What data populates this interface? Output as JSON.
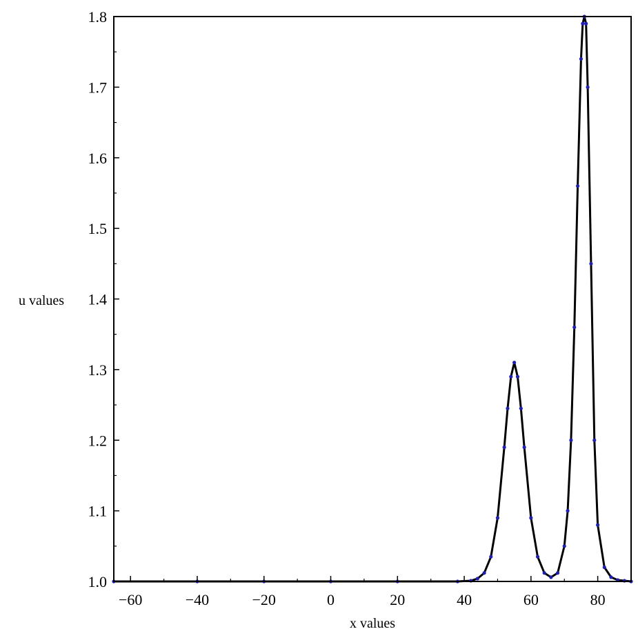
{
  "chart_data": {
    "type": "line",
    "title": "",
    "xlabel": "x values",
    "ylabel": "u values",
    "xlim": [
      -65,
      90
    ],
    "ylim": [
      1.0,
      1.8
    ],
    "x_ticks": [
      -60,
      -40,
      -20,
      0,
      20,
      40,
      60,
      80
    ],
    "x_tick_labels": [
      "−60",
      "−40",
      "−20",
      "0",
      "20",
      "40",
      "60",
      "80"
    ],
    "y_ticks": [
      1.0,
      1.1,
      1.2,
      1.3,
      1.4,
      1.5,
      1.6,
      1.7,
      1.8
    ],
    "y_tick_labels": [
      "1.0",
      "1.1",
      "1.2",
      "1.3",
      "1.4",
      "1.5",
      "1.6",
      "1.7",
      "1.8"
    ],
    "grid": false,
    "legend": "none",
    "series": [
      {
        "style": "line",
        "color": "#000000",
        "x": [
          -65,
          -40,
          -20,
          0,
          20,
          38,
          42,
          44,
          46,
          48,
          50,
          52,
          53,
          54,
          55,
          56,
          57,
          58,
          60,
          62,
          64,
          66,
          68,
          70,
          71,
          72,
          73,
          74,
          75,
          75.5,
          76,
          76.5,
          77,
          78,
          79,
          80,
          82,
          84,
          86,
          88,
          90
        ],
        "y": [
          1.0,
          1.0,
          1.0,
          1.0,
          1.0,
          1.0,
          1.001,
          1.004,
          1.012,
          1.035,
          1.09,
          1.19,
          1.245,
          1.29,
          1.31,
          1.29,
          1.245,
          1.19,
          1.09,
          1.035,
          1.012,
          1.006,
          1.012,
          1.05,
          1.1,
          1.2,
          1.36,
          1.56,
          1.74,
          1.79,
          1.8,
          1.79,
          1.7,
          1.45,
          1.2,
          1.08,
          1.02,
          1.006,
          1.002,
          1.001,
          1.0
        ]
      },
      {
        "style": "markers",
        "color": "#1f1fb0",
        "x": [
          -65,
          -40,
          -20,
          0,
          20,
          38,
          42,
          44,
          46,
          48,
          50,
          52,
          53,
          54,
          55,
          56,
          57,
          58,
          60,
          62,
          64,
          66,
          68,
          70,
          71,
          72,
          73,
          74,
          75,
          75.5,
          76,
          76.5,
          77,
          78,
          79,
          80,
          82,
          84,
          86,
          88,
          90
        ],
        "y": [
          1.0,
          1.0,
          1.0,
          1.0,
          1.0,
          1.0,
          1.001,
          1.004,
          1.012,
          1.035,
          1.09,
          1.19,
          1.245,
          1.29,
          1.31,
          1.29,
          1.245,
          1.19,
          1.09,
          1.035,
          1.012,
          1.006,
          1.012,
          1.05,
          1.1,
          1.2,
          1.36,
          1.56,
          1.74,
          1.79,
          1.8,
          1.79,
          1.7,
          1.45,
          1.2,
          1.08,
          1.02,
          1.006,
          1.002,
          1.001,
          1.0
        ]
      }
    ]
  }
}
